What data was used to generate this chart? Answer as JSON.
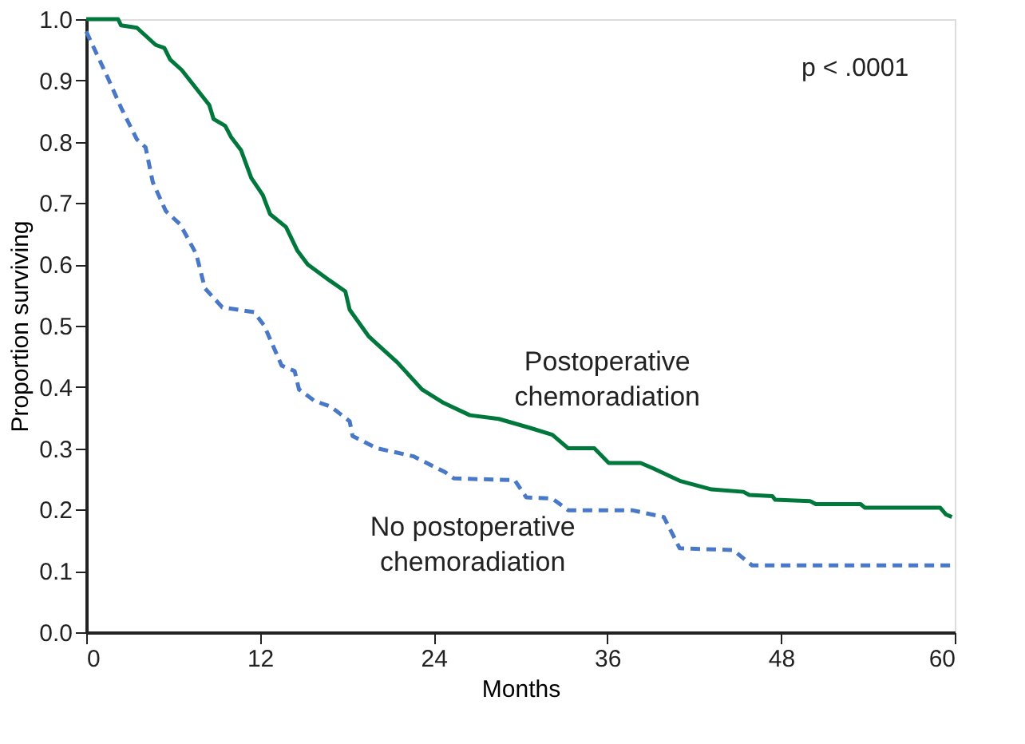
{
  "chart_data": {
    "type": "line",
    "xlabel": "Months",
    "ylabel": "Proportion surviving",
    "annotations": [
      "p < .0001"
    ],
    "xlim": [
      0,
      60
    ],
    "xticks": [
      0,
      12,
      24,
      36,
      48,
      60
    ],
    "ylim": [
      0,
      1
    ],
    "yticks": [
      {
        "value": 0,
        "label": "0.0"
      },
      0.1,
      0.2,
      0.3,
      0.4,
      0.5,
      0.6,
      0.7,
      0.8,
      0.9,
      {
        "value": 1,
        "label": "1.0"
      }
    ],
    "grid": false,
    "legend": false,
    "series": [
      {
        "name": "Postoperative chemoradiation",
        "color": "#00783c",
        "line_style": "solid",
        "x": [
          0,
          2.2,
          2.4,
          3.5,
          4.8,
          5.4,
          5.8,
          6.6,
          8.5,
          8.8,
          9.6,
          10,
          10.7,
          11.4,
          12.2,
          12.7,
          13.8,
          14.6,
          15.3,
          16.8,
          17.9,
          18.2,
          19.5,
          20.1,
          21.5,
          23.2,
          24.7,
          26.5,
          28.5,
          30.7,
          32.2,
          33.3,
          35.1,
          36.1,
          38.3,
          39.2,
          41,
          43.2,
          45.4,
          45.8,
          47.4,
          47.6,
          50,
          50.4,
          53.5,
          53.8,
          59,
          59.4,
          59.8
        ],
        "values": [
          1.0,
          1.0,
          0.99,
          0.986,
          0.958,
          0.953,
          0.934,
          0.917,
          0.86,
          0.837,
          0.826,
          0.808,
          0.786,
          0.741,
          0.713,
          0.682,
          0.661,
          0.622,
          0.6,
          0.574,
          0.556,
          0.526,
          0.483,
          0.47,
          0.44,
          0.396,
          0.374,
          0.354,
          0.348,
          0.333,
          0.322,
          0.3,
          0.3,
          0.276,
          0.276,
          0.267,
          0.247,
          0.233,
          0.229,
          0.224,
          0.222,
          0.216,
          0.214,
          0.209,
          0.209,
          0.203,
          0.203,
          0.192,
          0.188
        ]
      },
      {
        "name": "No postoperative chemoradiation",
        "color": "#4a78c8",
        "line_style": "dashed",
        "x": [
          0,
          1.5,
          2.4,
          3.5,
          4.1,
          4.6,
          5.5,
          6.5,
          7.6,
          8.2,
          9.4,
          11.6,
          12.3,
          13.5,
          14.4,
          14.7,
          15.8,
          16.9,
          18.2,
          18.4,
          20.1,
          22.6,
          24.8,
          25.4,
          29.6,
          30.4,
          32.2,
          33.3,
          37.7,
          39.9,
          41,
          44.7,
          46,
          59.8
        ],
        "values": [
          0.98,
          0.904,
          0.856,
          0.804,
          0.791,
          0.734,
          0.687,
          0.665,
          0.617,
          0.561,
          0.53,
          0.522,
          0.5,
          0.435,
          0.426,
          0.396,
          0.377,
          0.368,
          0.344,
          0.32,
          0.3,
          0.287,
          0.261,
          0.251,
          0.248,
          0.22,
          0.218,
          0.199,
          0.199,
          0.188,
          0.137,
          0.134,
          0.109,
          0.109
        ]
      }
    ]
  }
}
